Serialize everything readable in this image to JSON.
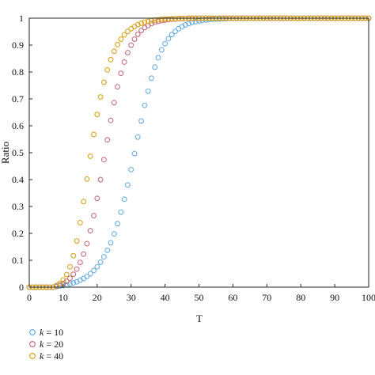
{
  "chart_data": {
    "type": "scatter",
    "title": "",
    "xlabel": "T",
    "ylabel": "Ratio",
    "xlim": [
      0,
      100
    ],
    "ylim": [
      0,
      1
    ],
    "xticks": [
      "0",
      "10",
      "20",
      "30",
      "40",
      "50",
      "60",
      "70",
      "80",
      "90",
      "100"
    ],
    "yticks": [
      "0",
      "0.1",
      "0.2",
      "0.3",
      "0.4",
      "0.5",
      "0.6",
      "0.7",
      "0.8",
      "0.9",
      "1"
    ],
    "legend_position": "bottom-left",
    "grid": false,
    "marker": "open-circle",
    "x": [
      0,
      1,
      2,
      3,
      4,
      5,
      6,
      7,
      8,
      9,
      10,
      11,
      12,
      13,
      14,
      15,
      16,
      17,
      18,
      19,
      20,
      21,
      22,
      23,
      24,
      25,
      26,
      27,
      28,
      29,
      30,
      31,
      32,
      33,
      34,
      35,
      36,
      37,
      38,
      39,
      40,
      41,
      42,
      43,
      44,
      45,
      46,
      47,
      48,
      49,
      50,
      51,
      52,
      53,
      54,
      55,
      56,
      57,
      58,
      59,
      60,
      61,
      62,
      63,
      64,
      65,
      66,
      67,
      68,
      69,
      70,
      71,
      72,
      73,
      74,
      75,
      76,
      77,
      78,
      79,
      80,
      81,
      82,
      83,
      84,
      85,
      86,
      87,
      88,
      89,
      90,
      91,
      92,
      93,
      94,
      95,
      96,
      97,
      98,
      99,
      100
    ],
    "series": [
      {
        "name": "k = 10",
        "k_label": "k",
        "k_value": "= 10",
        "color": "#6aaee0",
        "values": [
          0,
          0,
          0,
          0,
          0,
          0,
          0,
          0,
          0.002,
          0.004,
          0.006,
          0.009,
          0.012,
          0.016,
          0.02,
          0.026,
          0.032,
          0.04,
          0.05,
          0.062,
          0.076,
          0.093,
          0.113,
          0.137,
          0.165,
          0.198,
          0.236,
          0.279,
          0.327,
          0.38,
          0.437,
          0.497,
          0.558,
          0.618,
          0.676,
          0.729,
          0.777,
          0.818,
          0.853,
          0.882,
          0.905,
          0.924,
          0.939,
          0.951,
          0.961,
          0.969,
          0.975,
          0.98,
          0.984,
          0.987,
          0.99,
          0.992,
          0.993,
          0.995,
          0.996,
          0.997,
          0.997,
          0.998,
          0.998,
          0.999,
          0.999,
          0.999,
          0.999,
          0.999,
          1,
          1,
          1,
          1,
          1,
          1,
          1,
          1,
          1,
          1,
          1,
          1,
          1,
          1,
          1,
          1,
          1,
          1,
          1,
          1,
          1,
          1,
          1,
          1,
          1,
          1,
          1,
          1,
          1,
          1,
          1,
          1,
          1,
          1,
          1,
          1,
          1
        ]
      },
      {
        "name": "k = 20",
        "k_label": "k",
        "k_value": "= 20",
        "color": "#c4707e",
        "values": [
          0,
          0,
          0,
          0,
          0,
          0,
          0,
          0,
          0.004,
          0.008,
          0.014,
          0.022,
          0.033,
          0.048,
          0.067,
          0.092,
          0.123,
          0.162,
          0.21,
          0.266,
          0.33,
          0.4,
          0.474,
          0.548,
          0.62,
          0.686,
          0.745,
          0.795,
          0.837,
          0.872,
          0.9,
          0.922,
          0.94,
          0.954,
          0.965,
          0.973,
          0.98,
          0.985,
          0.988,
          0.991,
          0.993,
          0.995,
          0.996,
          0.997,
          0.998,
          0.998,
          0.999,
          0.999,
          0.999,
          0.999,
          1,
          1,
          1,
          1,
          1,
          1,
          1,
          1,
          1,
          1,
          1,
          1,
          1,
          1,
          1,
          1,
          1,
          1,
          1,
          1,
          1,
          1,
          1,
          1,
          1,
          1,
          1,
          1,
          1,
          1,
          1,
          1,
          1,
          1,
          1,
          1,
          1,
          1,
          1,
          1,
          1,
          1,
          1,
          1,
          1,
          1,
          1,
          1,
          1,
          1,
          1
        ]
      },
      {
        "name": "k = 40",
        "k_label": "k",
        "k_value": "= 40",
        "color": "#d9a41c",
        "values": [
          0,
          0,
          0,
          0,
          0,
          0,
          0,
          0,
          0.006,
          0.014,
          0.027,
          0.047,
          0.076,
          0.117,
          0.172,
          0.24,
          0.318,
          0.402,
          0.487,
          0.568,
          0.642,
          0.707,
          0.762,
          0.808,
          0.846,
          0.877,
          0.902,
          0.922,
          0.938,
          0.951,
          0.961,
          0.969,
          0.976,
          0.981,
          0.985,
          0.988,
          0.991,
          0.993,
          0.994,
          0.996,
          0.997,
          0.997,
          0.998,
          0.998,
          0.999,
          0.999,
          0.999,
          1,
          1,
          1,
          1,
          1,
          1,
          1,
          1,
          1,
          1,
          1,
          1,
          1,
          1,
          1,
          1,
          1,
          1,
          1,
          1,
          1,
          1,
          1,
          1,
          1,
          1,
          1,
          1,
          1,
          1,
          1,
          1,
          1,
          1,
          1,
          1,
          1,
          1,
          1,
          1,
          1,
          1,
          1,
          1,
          1,
          1,
          1,
          1,
          1,
          1,
          1,
          1,
          1,
          1
        ]
      }
    ]
  }
}
